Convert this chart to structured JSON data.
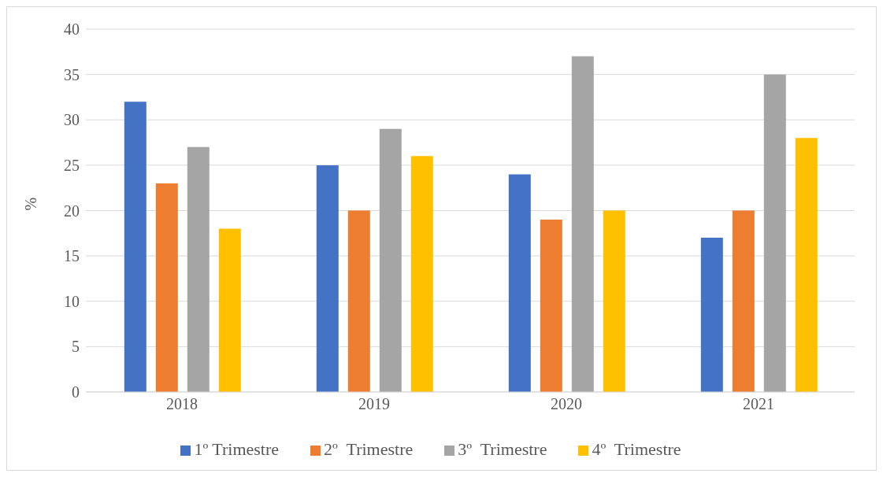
{
  "chart_data": {
    "type": "bar",
    "ylabel": "%",
    "categories": [
      "2018",
      "2019",
      "2020",
      "2021"
    ],
    "series": [
      {
        "name": "1º Trimestre",
        "color": "#4472c4",
        "values": [
          32,
          25,
          24,
          17
        ]
      },
      {
        "name": "2º  Trimestre",
        "color": "#ed7d31",
        "values": [
          23,
          20,
          19,
          20
        ]
      },
      {
        "name": "3º  Trimestre",
        "color": "#a5a5a5",
        "values": [
          27,
          29,
          37,
          35
        ]
      },
      {
        "name": "4º  Trimestre",
        "color": "#ffc000",
        "values": [
          18,
          26,
          20,
          28
        ]
      }
    ],
    "ylim": [
      0,
      40
    ],
    "yticks": [
      0,
      5,
      10,
      15,
      20,
      25,
      30,
      35,
      40
    ],
    "grid": "y",
    "legend": "bottom"
  }
}
